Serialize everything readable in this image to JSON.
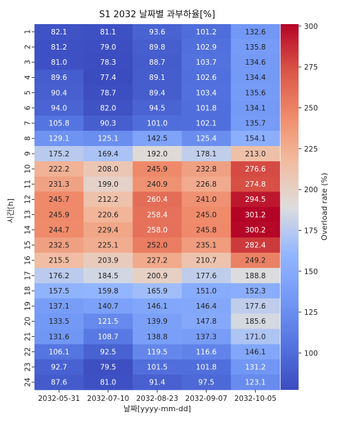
{
  "chart_data": {
    "type": "heatmap",
    "title": "S1 2032 날짜별 과부하율[%]",
    "xlabel": "날짜[yyyy-mm-dd]",
    "ylabel": "시간[h]",
    "colorbar_label": "Overload rate (%)",
    "colormap": "coolwarm",
    "vmin": 77.4,
    "vmax": 301.2,
    "colorbar_ticks": [
      100,
      125,
      150,
      175,
      200,
      225,
      250,
      275,
      300
    ],
    "x": [
      "2032-05-31",
      "2032-07-10",
      "2032-08-23",
      "2032-09-07",
      "2032-10-05"
    ],
    "y": [
      "1",
      "2",
      "3",
      "4",
      "5",
      "6",
      "7",
      "8",
      "9",
      "10",
      "11",
      "12",
      "13",
      "14",
      "15",
      "16",
      "17",
      "18",
      "19",
      "20",
      "21",
      "22",
      "23",
      "24"
    ],
    "values": [
      [
        82.1,
        81.1,
        93.6,
        101.2,
        132.6
      ],
      [
        81.2,
        79.0,
        89.8,
        102.9,
        135.8
      ],
      [
        81.0,
        78.3,
        88.7,
        103.7,
        134.6
      ],
      [
        89.6,
        77.4,
        89.1,
        102.6,
        134.4
      ],
      [
        90.4,
        78.7,
        89.4,
        103.4,
        135.6
      ],
      [
        94.0,
        82.0,
        94.5,
        101.8,
        134.1
      ],
      [
        105.8,
        90.3,
        101.0,
        102.1,
        135.7
      ],
      [
        129.1,
        125.1,
        142.5,
        125.4,
        154.1
      ],
      [
        175.2,
        169.4,
        192.0,
        178.1,
        213.0
      ],
      [
        222.2,
        208.0,
        245.9,
        232.8,
        276.6
      ],
      [
        231.3,
        199.0,
        240.9,
        226.8,
        274.8
      ],
      [
        245.7,
        212.2,
        260.4,
        241.0,
        294.5
      ],
      [
        245.9,
        220.6,
        258.4,
        245.0,
        301.2
      ],
      [
        244.7,
        229.4,
        258.0,
        245.8,
        300.2
      ],
      [
        232.5,
        225.1,
        252.0,
        235.1,
        282.4
      ],
      [
        215.5,
        203.9,
        227.2,
        210.7,
        249.2
      ],
      [
        176.2,
        184.5,
        200.9,
        177.6,
        188.8
      ],
      [
        157.5,
        159.8,
        165.9,
        151.0,
        152.3
      ],
      [
        137.1,
        140.7,
        146.1,
        146.4,
        177.6
      ],
      [
        133.5,
        121.5,
        139.9,
        147.8,
        185.6
      ],
      [
        131.6,
        108.7,
        138.8,
        137.3,
        171.0
      ],
      [
        106.1,
        92.5,
        119.5,
        116.6,
        146.1
      ],
      [
        92.7,
        79.5,
        101.5,
        101.8,
        131.2
      ],
      [
        87.6,
        81.0,
        91.4,
        97.5,
        123.1
      ]
    ]
  }
}
